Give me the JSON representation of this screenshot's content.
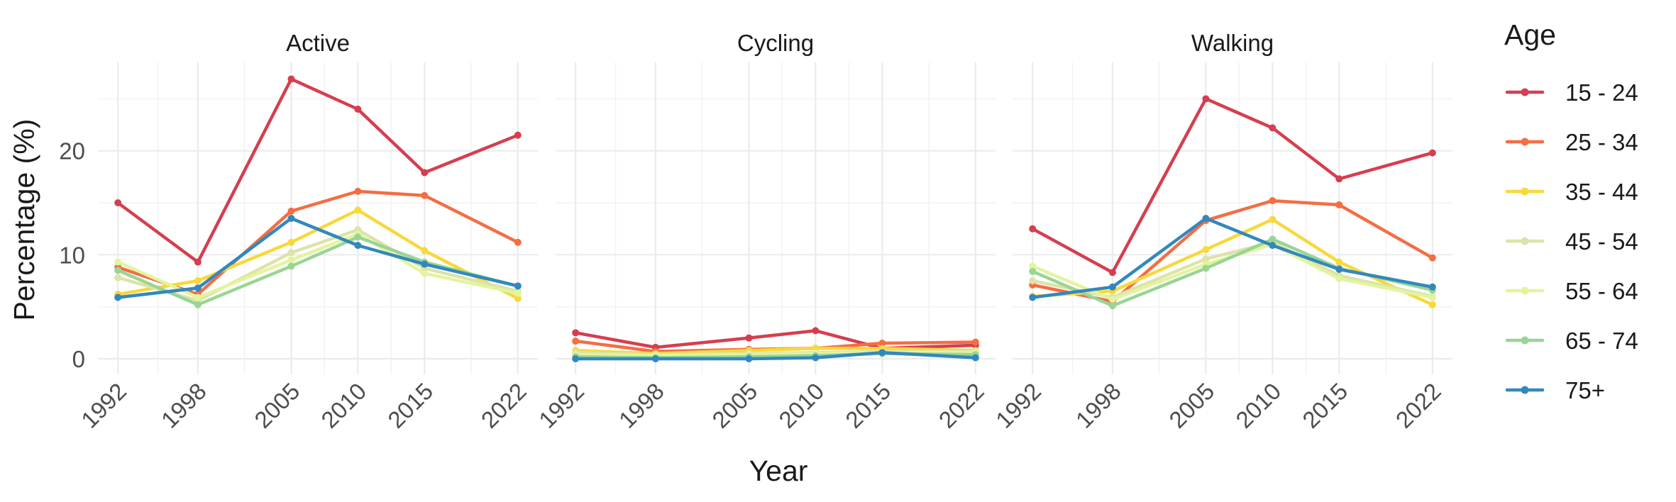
{
  "chart_data": {
    "type": "line",
    "facet_by": "mode",
    "panels": [
      "Active",
      "Cycling",
      "Walking"
    ],
    "x": [
      1992,
      1998,
      2005,
      2010,
      2015,
      2022
    ],
    "x_ticks": [
      "1992",
      "1998",
      "2005",
      "2010",
      "2015",
      "2022"
    ],
    "xlabel": "Year",
    "ylabel": "Percentage (%)",
    "y_ticks": [
      0,
      10,
      20
    ],
    "ylim": [
      -1.5,
      28.5
    ],
    "grid": true,
    "legend": {
      "title": "Age",
      "position": "right"
    },
    "series": [
      {
        "name": "15 - 24",
        "color": "#d53e4f",
        "values": {
          "Active": [
            15.0,
            9.3,
            26.9,
            24.0,
            17.9,
            21.5
          ],
          "Cycling": [
            2.5,
            1.1,
            2.0,
            2.7,
            1.0,
            1.3
          ],
          "Walking": [
            12.5,
            8.3,
            25.0,
            22.2,
            17.3,
            19.8
          ]
        }
      },
      {
        "name": "25 - 34",
        "color": "#f46d43",
        "values": {
          "Active": [
            8.8,
            6.2,
            14.2,
            16.1,
            15.7,
            11.2
          ],
          "Cycling": [
            1.7,
            0.7,
            0.9,
            1.0,
            1.5,
            1.6
          ],
          "Walking": [
            7.1,
            5.5,
            13.3,
            15.2,
            14.8,
            9.7
          ]
        }
      },
      {
        "name": "35 - 44",
        "color": "#fee08b",
        "stroke": "#f8d83a",
        "values": {
          "Active": [
            6.2,
            7.5,
            11.2,
            14.3,
            10.4,
            5.8
          ],
          "Cycling": [
            0.8,
            0.5,
            0.8,
            1.0,
            1.0,
            0.8
          ],
          "Walking": [
            6.0,
            6.5,
            10.5,
            13.4,
            9.3,
            5.2
          ]
        }
      },
      {
        "name": "45 - 54",
        "color": "#e6f598",
        "stroke": "#dde3a9",
        "values": {
          "Active": [
            7.8,
            5.6,
            10.2,
            12.4,
            8.7,
            6.5
          ],
          "Cycling": [
            0.6,
            0.4,
            0.5,
            0.6,
            0.7,
            0.7
          ],
          "Walking": [
            7.5,
            5.9,
            9.6,
            11.2,
            8.0,
            6.0
          ]
        }
      },
      {
        "name": "55 - 64",
        "color": "#e6f598",
        "stroke": "#e2f59c",
        "values": {
          "Active": [
            9.3,
            5.9,
            9.5,
            12.0,
            8.2,
            6.3
          ],
          "Cycling": [
            0.4,
            0.3,
            0.4,
            0.5,
            0.6,
            0.6
          ],
          "Walking": [
            8.9,
            5.7,
            9.1,
            11.0,
            7.7,
            5.9
          ]
        }
      },
      {
        "name": "65 - 74",
        "color": "#99d594",
        "values": {
          "Active": [
            8.5,
            5.2,
            8.9,
            11.7,
            9.3,
            7.0
          ],
          "Cycling": [
            0.2,
            0.1,
            0.2,
            0.3,
            0.5,
            0.4
          ],
          "Walking": [
            8.4,
            5.1,
            8.7,
            11.5,
            8.7,
            6.6
          ]
        }
      },
      {
        "name": "75+",
        "color": "#3288bd",
        "values": {
          "Active": [
            5.9,
            6.8,
            13.5,
            10.9,
            9.1,
            7.0
          ],
          "Cycling": [
            0.0,
            0.0,
            0.0,
            0.1,
            0.6,
            0.1
          ],
          "Walking": [
            5.9,
            6.9,
            13.5,
            10.9,
            8.6,
            6.9
          ]
        }
      }
    ]
  }
}
